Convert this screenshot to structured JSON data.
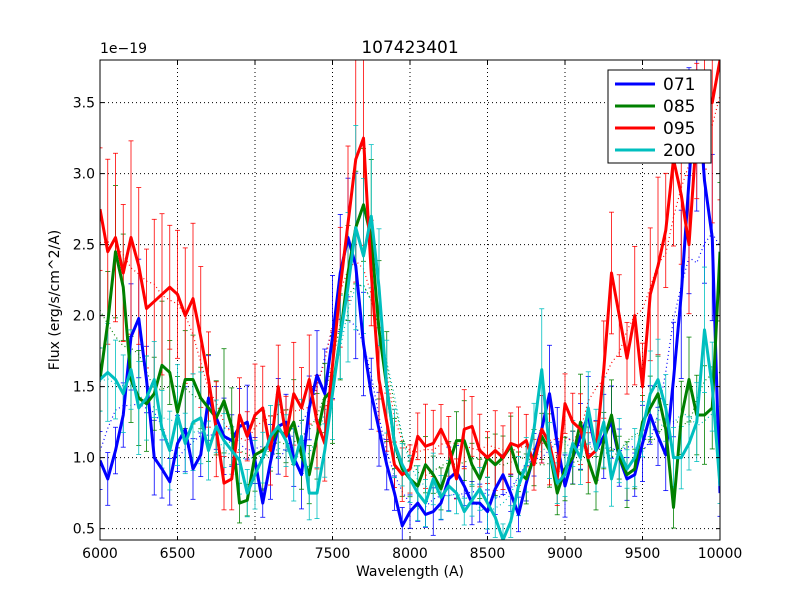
{
  "chart_data": {
    "type": "line",
    "title": "107423401",
    "xlabel": "Wavelength (A)",
    "ylabel": "Flux (erg/s/cm^2/A)",
    "offset_text": "1e−19",
    "xlim": [
      6000,
      10000
    ],
    "ylim": [
      0.42,
      3.8
    ],
    "grid": true,
    "legend_position": "top-right",
    "x_ticks": [
      6000,
      6500,
      7000,
      7500,
      8000,
      8500,
      9000,
      9500,
      10000
    ],
    "x_tick_labels": [
      "6000",
      "6500",
      "7000",
      "7500",
      "8000",
      "8500",
      "9000",
      "9500",
      "10000"
    ],
    "y_ticks": [
      0.5,
      1.0,
      1.5,
      2.0,
      2.5,
      3.0,
      3.5
    ],
    "y_tick_labels": [
      "0.5",
      "1.0",
      "1.5",
      "2.0",
      "2.5",
      "3.0",
      "3.5"
    ],
    "series": [
      {
        "name": "071",
        "color": "#0000ff",
        "x": [
          6000,
          6050,
          6100,
          6150,
          6200,
          6250,
          6300,
          6350,
          6400,
          6450,
          6500,
          6550,
          6600,
          6650,
          6700,
          6750,
          6800,
          6850,
          6900,
          6950,
          7000,
          7050,
          7100,
          7150,
          7200,
          7250,
          7300,
          7350,
          7400,
          7450,
          7500,
          7550,
          7600,
          7650,
          7700,
          7750,
          7800,
          7850,
          7900,
          7950,
          8000,
          8050,
          8100,
          8150,
          8200,
          8250,
          8300,
          8350,
          8400,
          8450,
          8500,
          8550,
          8600,
          8650,
          8700,
          8750,
          8800,
          8850,
          8900,
          8950,
          9000,
          9050,
          9100,
          9150,
          9200,
          9250,
          9300,
          9350,
          9400,
          9450,
          9500,
          9550,
          9600,
          9650,
          9700,
          9750,
          9800,
          9850,
          9900,
          9950,
          10000
        ],
        "values": [
          0.98,
          0.85,
          1.05,
          1.3,
          1.85,
          1.98,
          1.55,
          1.0,
          0.92,
          0.83,
          1.1,
          1.2,
          0.92,
          1.02,
          1.42,
          1.28,
          1.15,
          1.12,
          1.22,
          1.25,
          0.98,
          0.68,
          0.97,
          1.22,
          1.25,
          1.0,
          0.88,
          1.35,
          1.58,
          1.45,
          1.85,
          2.3,
          2.55,
          2.35,
          1.8,
          1.45,
          1.2,
          0.95,
          0.75,
          0.52,
          0.62,
          0.68,
          0.6,
          0.62,
          0.68,
          0.85,
          0.9,
          0.8,
          0.68,
          0.68,
          0.62,
          0.78,
          0.88,
          0.75,
          0.6,
          0.82,
          1.02,
          1.2,
          1.45,
          1.1,
          0.8,
          1.0,
          1.15,
          1.3,
          1.05,
          1.15,
          1.25,
          1.0,
          0.85,
          0.88,
          1.1,
          1.3,
          1.15,
          1.02,
          1.55,
          2.15,
          2.95,
          3.7,
          2.95,
          2.55,
          0.75
        ]
      },
      {
        "name": "085",
        "color": "#008000",
        "x": [
          6000,
          6050,
          6100,
          6150,
          6200,
          6250,
          6300,
          6350,
          6400,
          6450,
          6500,
          6550,
          6600,
          6650,
          6700,
          6750,
          6800,
          6850,
          6900,
          6950,
          7000,
          7050,
          7100,
          7150,
          7200,
          7250,
          7300,
          7350,
          7400,
          7450,
          7500,
          7550,
          7600,
          7650,
          7700,
          7750,
          7800,
          7850,
          7900,
          7950,
          8000,
          8050,
          8100,
          8150,
          8200,
          8250,
          8300,
          8350,
          8400,
          8450,
          8500,
          8550,
          8600,
          8650,
          8700,
          8750,
          8800,
          8850,
          8900,
          8950,
          9000,
          9050,
          9100,
          9150,
          9200,
          9250,
          9300,
          9350,
          9400,
          9450,
          9500,
          9550,
          9600,
          9650,
          9700,
          9750,
          9800,
          9850,
          9900,
          9950,
          10000
        ],
        "values": [
          1.55,
          1.95,
          2.45,
          2.2,
          1.55,
          1.42,
          1.38,
          1.45,
          1.65,
          1.6,
          1.32,
          1.55,
          1.55,
          1.42,
          1.35,
          1.28,
          1.4,
          1.22,
          0.68,
          0.7,
          1.02,
          1.05,
          1.1,
          1.2,
          1.15,
          1.25,
          1.02,
          0.88,
          1.15,
          1.42,
          1.48,
          1.85,
          2.3,
          2.62,
          2.78,
          2.55,
          1.9,
          1.5,
          1.1,
          0.92,
          0.85,
          0.8,
          0.95,
          0.88,
          0.78,
          0.95,
          1.12,
          1.12,
          0.95,
          0.85,
          1.0,
          0.95,
          1.0,
          1.08,
          0.9,
          0.85,
          1.0,
          1.15,
          1.05,
          0.75,
          0.92,
          1.0,
          1.25,
          0.98,
          0.82,
          1.12,
          1.3,
          1.0,
          0.88,
          0.92,
          1.25,
          1.35,
          1.45,
          1.2,
          0.65,
          1.28,
          1.55,
          1.3,
          1.3,
          1.35,
          2.45
        ]
      },
      {
        "name": "095",
        "color": "#ff0000",
        "x": [
          6000,
          6050,
          6100,
          6150,
          6200,
          6250,
          6300,
          6350,
          6400,
          6450,
          6500,
          6550,
          6600,
          6650,
          6700,
          6750,
          6800,
          6850,
          6900,
          6950,
          7000,
          7050,
          7100,
          7150,
          7200,
          7250,
          7300,
          7350,
          7400,
          7450,
          7500,
          7550,
          7600,
          7650,
          7700,
          7750,
          7800,
          7850,
          7900,
          7950,
          8000,
          8050,
          8100,
          8150,
          8200,
          8250,
          8300,
          8350,
          8400,
          8450,
          8500,
          8550,
          8600,
          8650,
          8700,
          8750,
          8800,
          8850,
          8900,
          8950,
          9000,
          9050,
          9100,
          9150,
          9200,
          9250,
          9300,
          9350,
          9400,
          9450,
          9500,
          9550,
          9600,
          9650,
          9700,
          9750,
          9800,
          9850,
          9900,
          9950,
          10000
        ],
        "values": [
          2.75,
          2.45,
          2.55,
          2.3,
          2.55,
          2.35,
          2.05,
          2.1,
          2.15,
          2.2,
          2.15,
          2.0,
          2.12,
          1.85,
          1.55,
          1.2,
          0.82,
          0.85,
          1.3,
          1.15,
          1.3,
          1.35,
          1.05,
          1.5,
          1.15,
          1.45,
          1.35,
          1.55,
          1.25,
          1.1,
          1.65,
          2.2,
          2.65,
          3.1,
          3.25,
          2.3,
          1.55,
          1.25,
          0.95,
          0.88,
          0.92,
          1.15,
          1.08,
          1.1,
          1.2,
          1.08,
          0.85,
          1.2,
          1.22,
          1.05,
          1.0,
          1.05,
          1.0,
          1.1,
          1.08,
          1.12,
          0.95,
          1.2,
          1.1,
          0.85,
          1.38,
          1.25,
          1.2,
          1.0,
          1.05,
          1.62,
          2.3,
          2.0,
          1.7,
          2.0,
          1.5,
          2.15,
          2.35,
          2.6,
          3.1,
          2.85,
          2.5,
          3.3,
          3.6,
          3.5,
          3.8
        ]
      },
      {
        "name": "200",
        "color": "#00bfbf",
        "x": [
          6000,
          6050,
          6100,
          6150,
          6200,
          6250,
          6300,
          6350,
          6400,
          6450,
          6500,
          6550,
          6600,
          6650,
          6700,
          6750,
          6800,
          6850,
          6900,
          6950,
          7000,
          7050,
          7100,
          7150,
          7200,
          7250,
          7300,
          7350,
          7400,
          7450,
          7500,
          7550,
          7600,
          7650,
          7700,
          7750,
          7800,
          7850,
          7900,
          7950,
          8000,
          8050,
          8100,
          8150,
          8200,
          8250,
          8300,
          8350,
          8400,
          8450,
          8500,
          8550,
          8600,
          8650,
          8700,
          8750,
          8800,
          8850,
          8900,
          8950,
          9000,
          9050,
          9100,
          9150,
          9200,
          9250,
          9300,
          9350,
          9400,
          9450,
          9500,
          9550,
          9600,
          9650,
          9700,
          9750,
          9800,
          9850,
          9900,
          9950,
          10000
        ],
        "values": [
          1.55,
          1.6,
          1.55,
          1.45,
          1.62,
          1.35,
          1.42,
          1.55,
          1.2,
          1.05,
          1.3,
          1.1,
          1.25,
          1.28,
          1.05,
          1.22,
          1.12,
          1.05,
          0.98,
          0.75,
          0.88,
          1.0,
          1.15,
          1.22,
          1.12,
          0.95,
          1.15,
          0.75,
          0.75,
          1.05,
          1.45,
          1.85,
          2.2,
          2.62,
          2.42,
          2.7,
          2.2,
          1.5,
          1.1,
          0.95,
          0.85,
          0.75,
          0.68,
          0.85,
          0.72,
          0.8,
          0.75,
          0.62,
          0.7,
          0.78,
          0.68,
          0.58,
          0.42,
          0.55,
          0.8,
          0.95,
          1.2,
          1.62,
          1.05,
          0.82,
          0.88,
          1.1,
          1.0,
          1.35,
          1.05,
          1.25,
          0.85,
          1.05,
          0.92,
          1.0,
          1.2,
          1.45,
          1.55,
          1.35,
          1.0,
          1.0,
          1.1,
          1.25,
          1.9,
          1.5,
          0.8
        ]
      }
    ]
  }
}
